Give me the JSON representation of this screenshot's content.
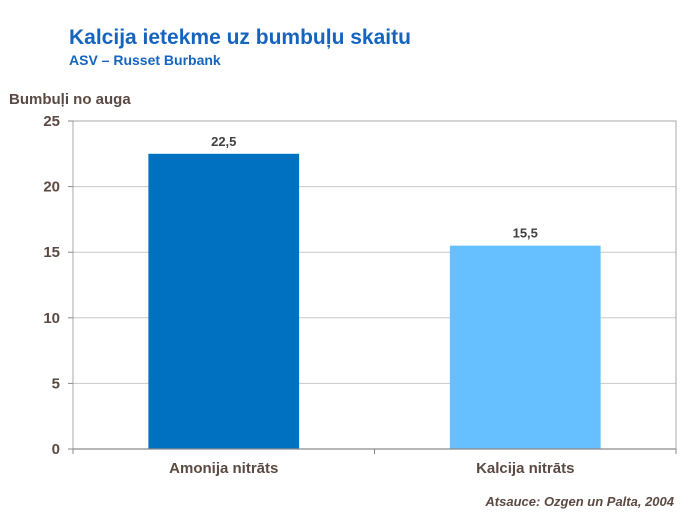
{
  "chart_data": {
    "type": "bar",
    "title": "Kalcija ietekme uz bumbuļu skaitu",
    "subtitle": "ASV – Russet Burbank",
    "xlabel": "",
    "ylabel": "Bumbuļi no auga",
    "categories": [
      "Amonija nitrāts",
      "Kalcija nitrāts"
    ],
    "values": [
      22.5,
      15.5
    ],
    "value_labels": [
      "22,5",
      "15,5"
    ],
    "bar_colors": [
      "#0070c0",
      "#66bfff"
    ],
    "ylim": [
      0,
      25
    ],
    "yticks": [
      0,
      5,
      10,
      15,
      20,
      25
    ],
    "grid": true,
    "legend": "none",
    "source": "Atsauce: Ozgen un Palta, 2004"
  }
}
